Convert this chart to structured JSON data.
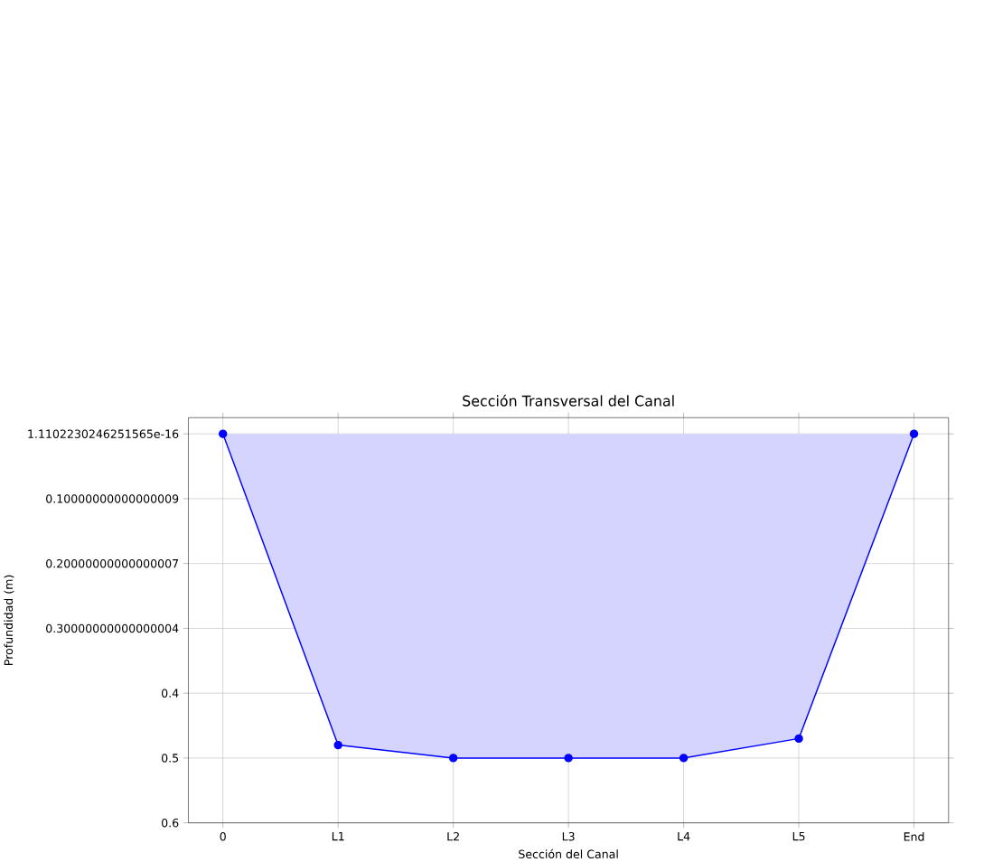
{
  "chart_data": {
    "type": "area",
    "title": "Sección Transversal del Canal",
    "xlabel": "Sección del Canal",
    "ylabel": "Profundidad (m)",
    "categories": [
      "0",
      "L1",
      "L2",
      "L3",
      "L4",
      "L5",
      "End"
    ],
    "series": [
      {
        "color": "#0000ff",
        "values": [
          0,
          0.48,
          0.5,
          0.5,
          0.5,
          0.47,
          0
        ]
      }
    ],
    "ylim": [
      0.6,
      -0.025
    ],
    "yticks": [
      {
        "value": 0,
        "label": "1.1102230246251565e-16"
      },
      {
        "value": 0.1,
        "label": "0.10000000000000009"
      },
      {
        "value": 0.2,
        "label": "0.20000000000000007"
      },
      {
        "value": 0.3,
        "label": "0.30000000000000004"
      },
      0.4,
      0.5,
      0.6
    ],
    "grid": true,
    "marker": "circle",
    "line_style": "solid"
  }
}
